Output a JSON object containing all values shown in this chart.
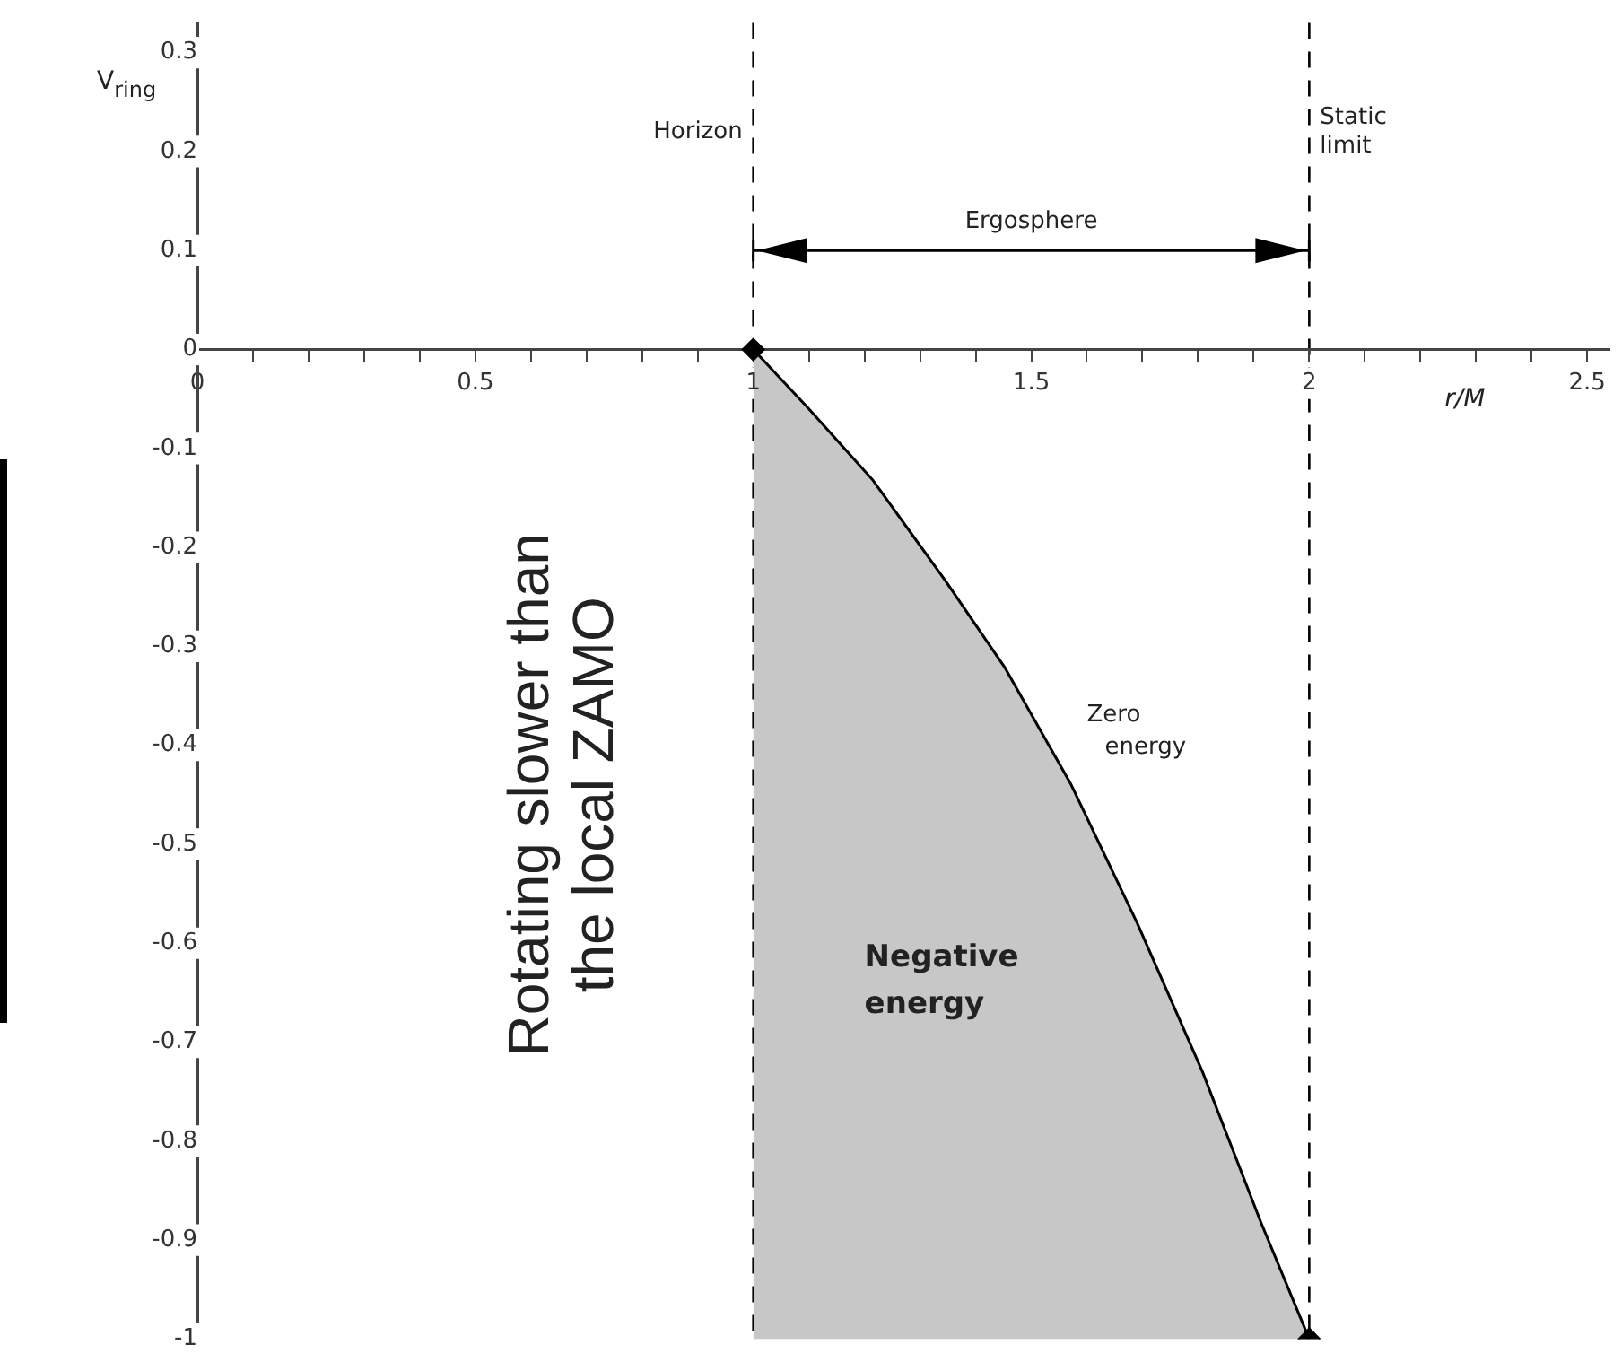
{
  "chart_data": {
    "type": "area",
    "xlabel": "r/M",
    "ylabel": "V$_{ring}$",
    "xlim": [
      0,
      2.54
    ],
    "ylim": [
      -1,
      0.33
    ],
    "xticks": [
      0,
      {
        "value": 0.1,
        "label": null
      },
      {
        "value": 0.2,
        "label": null
      },
      {
        "value": 0.3,
        "label": null
      },
      {
        "value": 0.4,
        "label": null
      },
      0.5,
      {
        "value": 0.6,
        "label": null
      },
      {
        "value": 0.7,
        "label": null
      },
      {
        "value": 0.8,
        "label": null
      },
      {
        "value": 0.9,
        "label": null
      },
      1,
      {
        "value": 1.1,
        "label": null
      },
      {
        "value": 1.2,
        "label": null
      },
      {
        "value": 1.3,
        "label": null
      },
      {
        "value": 1.4,
        "label": null
      },
      1.5,
      {
        "value": 1.6,
        "label": null
      },
      {
        "value": 1.7,
        "label": null
      },
      {
        "value": 1.8,
        "label": null
      },
      {
        "value": 1.9,
        "label": null
      },
      2,
      {
        "value": 2.1,
        "label": null
      },
      {
        "value": 2.2,
        "label": null
      },
      {
        "value": 2.3,
        "label": null
      },
      {
        "value": 2.4,
        "label": null
      },
      2.5
    ],
    "yticks": [
      -1,
      -0.9,
      -0.8,
      -0.7,
      -0.6,
      -0.5,
      -0.4,
      -0.3,
      -0.2,
      -0.1,
      0,
      0.1,
      0.2,
      0.3
    ],
    "grid": false,
    "legend": false,
    "series": [
      {
        "color": "#000000",
        "x": [
          1,
          1,
          1.1,
          1.215,
          1.346,
          1.452,
          1.571,
          1.69,
          1.808,
          1.913,
          2
        ],
        "values": [
          -1,
          0,
          -0.06,
          -0.132,
          -0.234,
          -0.321,
          -0.439,
          -0.579,
          -0.73,
          -0.882,
          -1
        ]
      },
      {
        "type": "scatter",
        "color": "#000000",
        "marker": "diamond",
        "x": [
          1,
          2
        ],
        "values": [
          0,
          -1
        ]
      }
    ],
    "ref_lines": [
      {
        "axis": "x",
        "value": 1,
        "label": "Horizon",
        "color": "#000000",
        "line_style": "dashed"
      },
      {
        "axis": "x",
        "value": 2,
        "label": "Static limit",
        "color": "#000000",
        "line_style": "dashed"
      }
    ],
    "annotations": [
      "Ergosphere",
      "Zero energy",
      "Negative energy",
      "Rotating slower than the local ZAMO"
    ]
  }
}
